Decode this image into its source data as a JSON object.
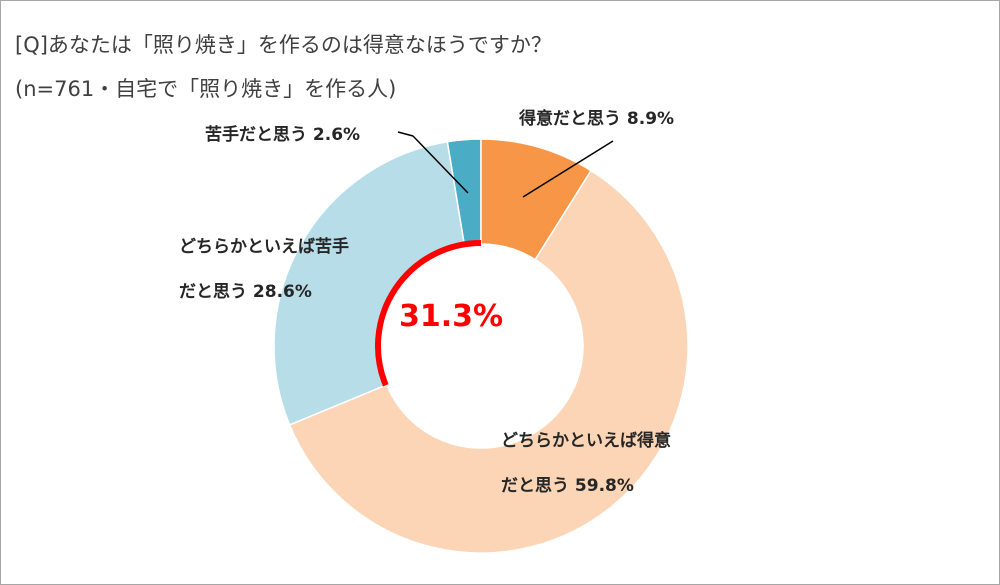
{
  "chart_data": {
    "type": "donut",
    "title": "[Q]あなたは「照り焼き」を作るのは得意なほうですか？",
    "subtitle": "(n=761・自宅で「照り焼き」を作る人)",
    "categories": [
      "得意だと思う",
      "どちらかといえば得意だと思う",
      "どちらかといえば苦手だと思う",
      "苦手だと思う"
    ],
    "values": [
      8.9,
      59.8,
      28.6,
      2.6
    ],
    "value_labels": [
      "8.9%",
      "59.8%",
      "28.6%",
      "2.6%"
    ],
    "colors": [
      "#f79646",
      "#fbd5b5",
      "#b7dee8",
      "#4bacc6"
    ],
    "annotation": "31.3%",
    "annotation_color": "#ff0000"
  }
}
